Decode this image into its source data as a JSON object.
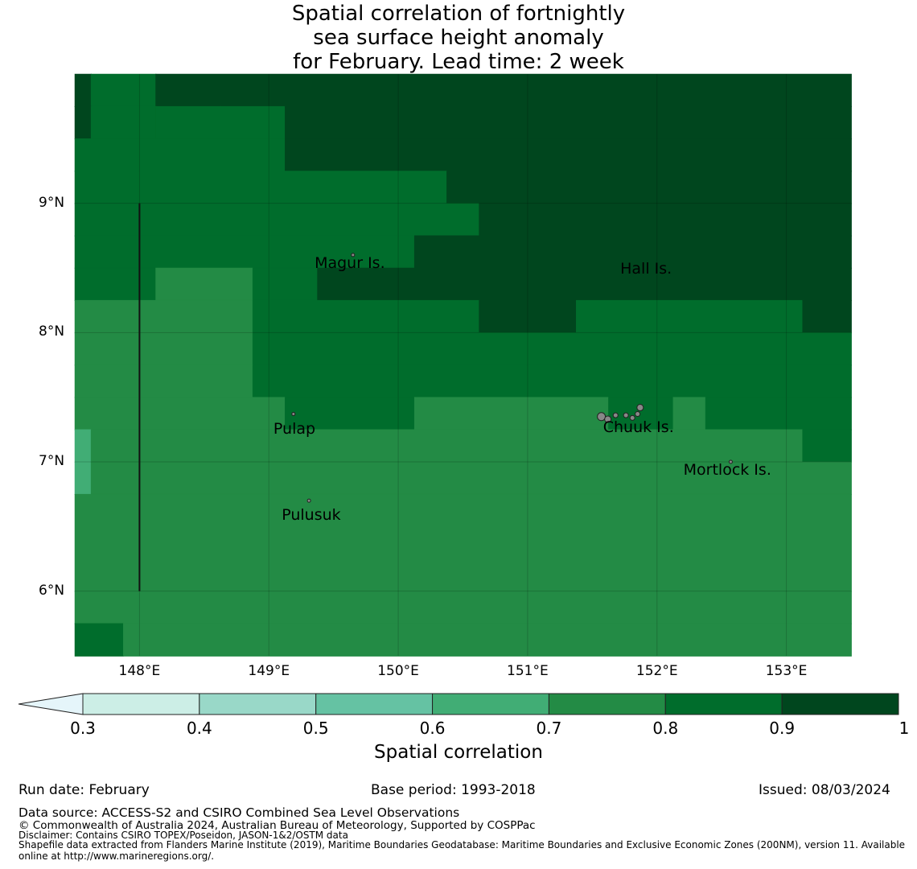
{
  "title": {
    "line1": "Spatial correlation of fortnightly",
    "line2": "sea surface height anomaly",
    "line3": "for February. Lead time: 2 week"
  },
  "map": {
    "lon_range": [
      147.5,
      153.5
    ],
    "lat_range": [
      5.5,
      10.0
    ],
    "lat_ticks": [
      {
        "value": 9,
        "label": "9°N"
      },
      {
        "value": 8,
        "label": "8°N"
      },
      {
        "value": 7,
        "label": "7°N"
      },
      {
        "value": 6,
        "label": "6°N"
      }
    ],
    "lon_ticks": [
      {
        "value": 148,
        "label": "148°E"
      },
      {
        "value": 149,
        "label": "149°E"
      },
      {
        "value": 150,
        "label": "150°E"
      },
      {
        "value": 151,
        "label": "151°E"
      },
      {
        "value": 152,
        "label": "152°E"
      },
      {
        "value": 153,
        "label": "153°E"
      }
    ],
    "places": [
      {
        "name": "Magur Is.",
        "lon": 149.65,
        "lat": 8.53
      },
      {
        "name": "Hall Is.",
        "lon": 151.98,
        "lat": 8.49
      },
      {
        "name": "Pulap",
        "lon": 149.2,
        "lat": 7.25
      },
      {
        "name": "Chuuk Is.",
        "lon": 151.88,
        "lat": 7.26
      },
      {
        "name": "Mortlock Is.",
        "lon": 152.6,
        "lat": 6.93
      },
      {
        "name": "Pulusuk",
        "lon": 149.33,
        "lat": 6.58
      }
    ],
    "boundary_line": {
      "lon": 148.0,
      "lat_from": 6.0,
      "lat_to": 9.0
    },
    "levels": [
      {
        "lo": 0.3,
        "hi": 0.4,
        "color": "#cceee6"
      },
      {
        "lo": 0.4,
        "hi": 0.5,
        "color": "#99d8c8"
      },
      {
        "lo": 0.5,
        "hi": 0.6,
        "color": "#65c2a3"
      },
      {
        "lo": 0.6,
        "hi": 0.7,
        "color": "#41ad75"
      },
      {
        "lo": 0.7,
        "hi": 0.8,
        "color": "#238b45"
      },
      {
        "lo": 0.8,
        "hi": 0.9,
        "color": "#006d2c"
      },
      {
        "lo": 0.9,
        "hi": 1.0,
        "color": "#00461e"
      }
    ],
    "under_color": "#e5f5fa",
    "grid_rows": [
      {
        "lat": [
          9.75,
          10.0
        ],
        "bands": [
          [
            147.5,
            147.625,
            0.95
          ],
          [
            147.625,
            148.125,
            0.85
          ],
          [
            148.125,
            153.5,
            0.95
          ]
        ]
      },
      {
        "lat": [
          9.5,
          9.75
        ],
        "bands": [
          [
            147.5,
            147.625,
            0.95
          ],
          [
            147.625,
            148.125,
            0.85
          ],
          [
            148.125,
            148.625,
            0.85
          ],
          [
            148.625,
            149.125,
            0.85
          ],
          [
            149.125,
            153.5,
            0.95
          ]
        ]
      },
      {
        "lat": [
          9.25,
          9.5
        ],
        "bands": [
          [
            147.5,
            148.625,
            0.85
          ],
          [
            148.625,
            149.125,
            0.85
          ],
          [
            149.125,
            153.5,
            0.95
          ]
        ]
      },
      {
        "lat": [
          9.0,
          9.25
        ],
        "bands": [
          [
            147.5,
            150.375,
            0.85
          ],
          [
            150.375,
            153.5,
            0.95
          ]
        ]
      },
      {
        "lat": [
          8.75,
          9.0
        ],
        "bands": [
          [
            147.5,
            150.625,
            0.85
          ],
          [
            150.625,
            153.5,
            0.95
          ]
        ]
      },
      {
        "lat": [
          8.5,
          8.75
        ],
        "bands": [
          [
            147.5,
            150.125,
            0.85
          ],
          [
            150.125,
            153.5,
            0.95
          ]
        ]
      },
      {
        "lat": [
          8.25,
          8.5
        ],
        "bands": [
          [
            147.5,
            148.125,
            0.85
          ],
          [
            148.125,
            148.875,
            0.75
          ],
          [
            148.875,
            149.375,
            0.85
          ],
          [
            149.375,
            153.5,
            0.95
          ]
        ]
      },
      {
        "lat": [
          8.0,
          8.25
        ],
        "bands": [
          [
            147.5,
            148.875,
            0.75
          ],
          [
            148.875,
            150.625,
            0.85
          ],
          [
            150.625,
            151.375,
            0.95
          ],
          [
            151.375,
            153.125,
            0.85
          ],
          [
            153.125,
            153.5,
            0.95
          ]
        ]
      },
      {
        "lat": [
          7.75,
          8.0
        ],
        "bands": [
          [
            147.5,
            148.875,
            0.75
          ],
          [
            148.875,
            153.5,
            0.85
          ]
        ]
      },
      {
        "lat": [
          7.5,
          7.75
        ],
        "bands": [
          [
            147.5,
            148.875,
            0.75
          ],
          [
            148.875,
            153.5,
            0.85
          ]
        ]
      },
      {
        "lat": [
          7.25,
          7.5
        ],
        "bands": [
          [
            147.5,
            149.125,
            0.75
          ],
          [
            149.125,
            150.125,
            0.85
          ],
          [
            150.125,
            151.625,
            0.75
          ],
          [
            151.625,
            152.125,
            0.85
          ],
          [
            152.125,
            152.375,
            0.75
          ],
          [
            152.375,
            153.5,
            0.85
          ]
        ]
      },
      {
        "lat": [
          7.0,
          7.25
        ],
        "bands": [
          [
            147.5,
            147.625,
            0.65
          ],
          [
            147.625,
            153.125,
            0.75
          ],
          [
            153.125,
            153.5,
            0.85
          ]
        ]
      },
      {
        "lat": [
          6.75,
          7.0
        ],
        "bands": [
          [
            147.5,
            147.625,
            0.65
          ],
          [
            147.625,
            153.5,
            0.75
          ]
        ]
      },
      {
        "lat": [
          6.0,
          6.75
        ],
        "bands": [
          [
            147.5,
            153.5,
            0.75
          ]
        ]
      },
      {
        "lat": [
          5.75,
          6.0
        ],
        "bands": [
          [
            147.5,
            153.5,
            0.75
          ]
        ]
      },
      {
        "lat": [
          5.5,
          5.75
        ],
        "bands": [
          [
            147.5,
            147.875,
            0.85
          ],
          [
            147.875,
            153.5,
            0.75
          ]
        ]
      }
    ]
  },
  "colorbar": {
    "ticks": [
      "0.3",
      "0.4",
      "0.5",
      "0.6",
      "0.7",
      "0.8",
      "0.9",
      "1"
    ],
    "label": "Spatial correlation"
  },
  "footer": {
    "run_date": "Run date: February",
    "base_period": "Base period: 1993-2018",
    "issued": "Issued: 08/03/2024",
    "data_source": "Data source: ACCESS-S2 and CSIRO Combined Sea Level Observations",
    "copyright": "© Commonwealth of Australia 2024, Australian Bureau of Meteorology, Supported by COSPPac",
    "disclaimer": "Disclaimer: Contains CSIRO TOPEX/Poseidon, JASON-1&2/OSTM data",
    "shapefile_line1": "Shapefile data extracted from Flanders Marine Institute (2019), Maritime Boundaries Geodatabase: Maritime Boundaries and Exclusive Economic Zones (200NM), version 11. Available",
    "shapefile_line2": "online at http://www.marineregions.org/."
  }
}
